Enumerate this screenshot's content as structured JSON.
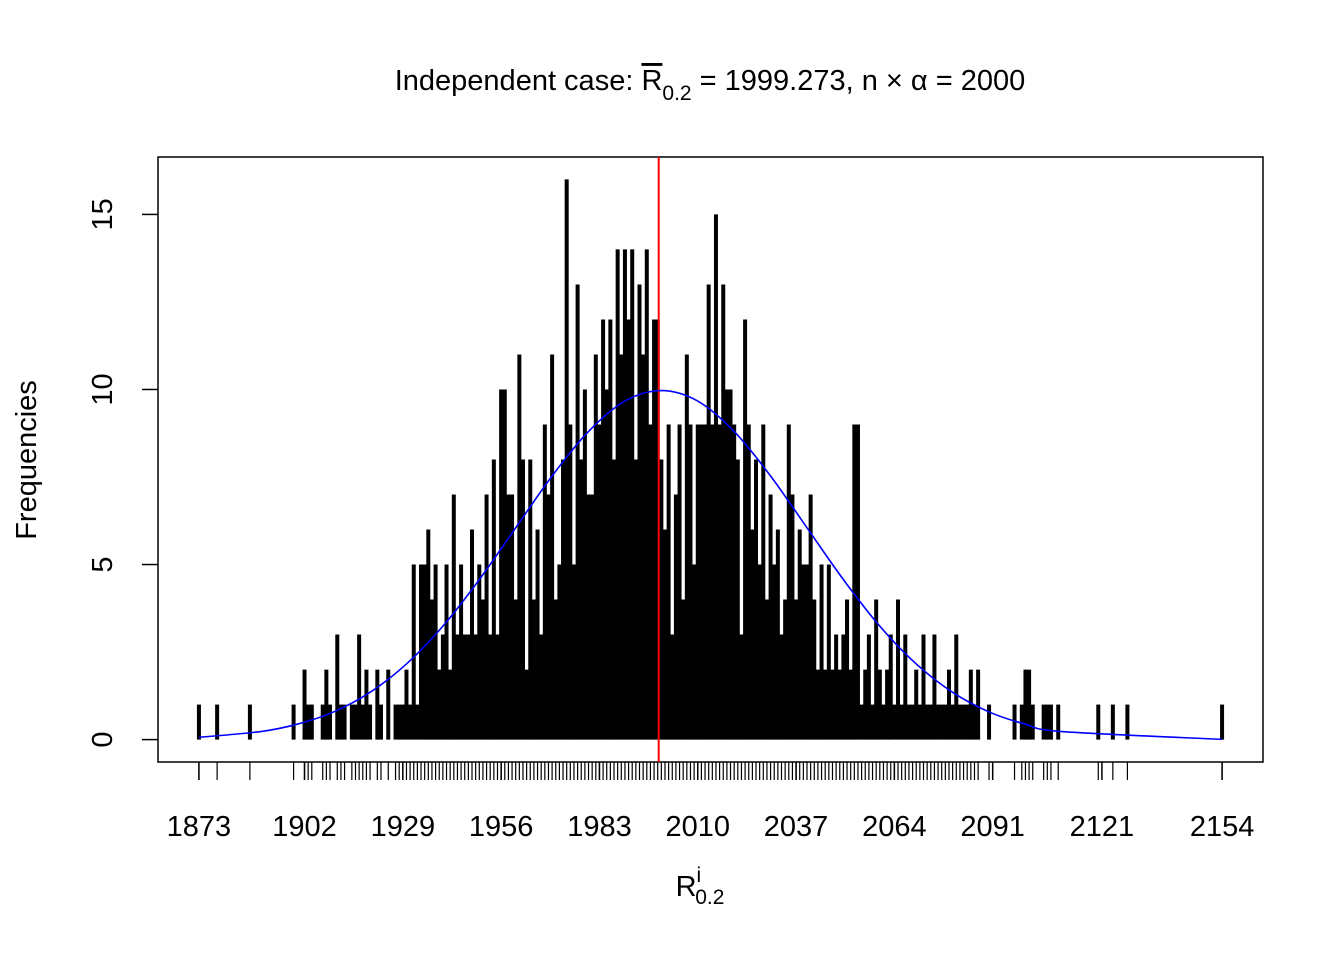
{
  "chart_data": {
    "type": "frequency",
    "title": {
      "lead": "Independent case: ",
      "stat": "R",
      "stat_sub": "0.2",
      "eq": " = ",
      "mean": 1999.273,
      "mid": ", n × α = ",
      "expected": 2000
    },
    "xlabel": {
      "base": "R",
      "sup": "i",
      "sub": "0.2"
    },
    "ylabel": "Frequencies",
    "x": [
      1873,
      1878,
      1887,
      1899,
      1902,
      1903,
      1904,
      1907,
      1908,
      1909,
      1911,
      1912,
      1913,
      1915,
      1916,
      1917,
      1918,
      1919,
      1920,
      1922,
      1923,
      1925,
      1927,
      1928,
      1929,
      1930,
      1931,
      1932,
      1933,
      1934,
      1935,
      1936,
      1937,
      1938,
      1939,
      1940,
      1941,
      1942,
      1943,
      1944,
      1945,
      1946,
      1947,
      1948,
      1949,
      1950,
      1951,
      1952,
      1953,
      1954,
      1955,
      1956,
      1957,
      1958,
      1959,
      1960,
      1961,
      1962,
      1963,
      1964,
      1965,
      1966,
      1967,
      1968,
      1969,
      1970,
      1971,
      1972,
      1973,
      1974,
      1975,
      1976,
      1977,
      1978,
      1979,
      1980,
      1981,
      1982,
      1983,
      1984,
      1985,
      1986,
      1987,
      1988,
      1989,
      1990,
      1991,
      1992,
      1993,
      1994,
      1995,
      1996,
      1997,
      1998,
      1999,
      2000,
      2001,
      2002,
      2003,
      2004,
      2005,
      2006,
      2007,
      2008,
      2009,
      2010,
      2011,
      2012,
      2013,
      2014,
      2015,
      2016,
      2017,
      2018,
      2019,
      2020,
      2021,
      2022,
      2023,
      2024,
      2025,
      2026,
      2027,
      2028,
      2029,
      2030,
      2031,
      2032,
      2033,
      2034,
      2035,
      2036,
      2037,
      2038,
      2039,
      2040,
      2041,
      2042,
      2043,
      2044,
      2045,
      2046,
      2047,
      2048,
      2049,
      2050,
      2051,
      2052,
      2053,
      2054,
      2055,
      2056,
      2057,
      2058,
      2059,
      2060,
      2061,
      2062,
      2063,
      2064,
      2065,
      2066,
      2067,
      2068,
      2069,
      2070,
      2071,
      2072,
      2073,
      2074,
      2075,
      2076,
      2077,
      2078,
      2079,
      2080,
      2081,
      2082,
      2083,
      2084,
      2085,
      2086,
      2087,
      2090,
      2097,
      2099,
      2100,
      2101,
      2102,
      2105,
      2106,
      2107,
      2109,
      2120,
      2124,
      2128,
      2154
    ],
    "values": [
      1,
      1,
      1,
      1,
      2,
      1,
      1,
      1,
      2,
      1,
      3,
      1,
      1,
      1,
      1,
      3,
      1,
      2,
      1,
      2,
      1,
      2,
      1,
      1,
      1,
      2,
      1,
      5,
      1,
      5,
      5,
      6,
      4,
      5,
      2,
      3,
      5,
      2,
      7,
      3,
      5,
      3,
      3,
      6,
      3,
      5,
      4,
      7,
      3,
      8,
      3,
      10,
      10,
      7,
      7,
      4,
      11,
      8,
      2,
      8,
      4,
      6,
      3,
      9,
      7,
      11,
      4,
      5,
      8,
      16,
      9,
      5,
      13,
      8,
      10,
      7,
      7,
      11,
      9,
      12,
      10,
      12,
      8,
      14,
      11,
      14,
      12,
      14,
      8,
      13,
      11,
      14,
      9,
      12,
      12,
      8,
      6,
      9,
      3,
      7,
      9,
      4,
      11,
      9,
      5,
      9,
      9,
      9,
      13,
      9,
      15,
      9,
      13,
      10,
      10,
      9,
      8,
      3,
      12,
      9,
      6,
      8,
      5,
      9,
      4,
      7,
      5,
      6,
      3,
      4,
      9,
      7,
      4,
      6,
      5,
      5,
      7,
      4,
      2,
      5,
      2,
      5,
      2,
      3,
      2,
      3,
      4,
      2,
      9,
      9,
      1,
      2,
      3,
      1,
      4,
      2,
      1,
      2,
      3,
      1,
      4,
      1,
      3,
      1,
      1,
      2,
      1,
      3,
      1,
      1,
      3,
      1,
      1,
      1,
      2,
      1,
      3,
      1,
      1,
      1,
      2,
      1,
      2,
      1,
      1,
      1,
      2,
      2,
      1,
      1,
      1,
      1,
      1,
      1,
      1,
      1,
      1
    ],
    "color": "#000000",
    "mean_color": "#ff0000",
    "curve": {
      "color": "#0000ff",
      "x": [
        1873,
        1890,
        1900,
        1910,
        1920,
        1930,
        1940,
        1950,
        1960,
        1970,
        1980,
        1990,
        2000,
        2010,
        2020,
        2030,
        2040,
        2050,
        2060,
        2070,
        2080,
        2090,
        2100,
        2110,
        2154
      ],
      "values": [
        0.065,
        0.23,
        0.44,
        0.79,
        1.35,
        2.16,
        3.24,
        4.57,
        6.05,
        7.53,
        8.8,
        9.67,
        9.97,
        9.67,
        8.8,
        7.53,
        6.05,
        4.57,
        3.24,
        2.16,
        1.35,
        0.79,
        0.44,
        0.23,
        0.006
      ]
    },
    "xlim": [
      1861.76,
      2165.24
    ],
    "ylim": [
      -0.64,
      16.64
    ],
    "xticks": [
      1873,
      1902,
      1929,
      1956,
      1983,
      2010,
      2037,
      2064,
      2091,
      2121,
      2154
    ],
    "yticks": [
      0,
      5,
      10,
      15
    ]
  }
}
